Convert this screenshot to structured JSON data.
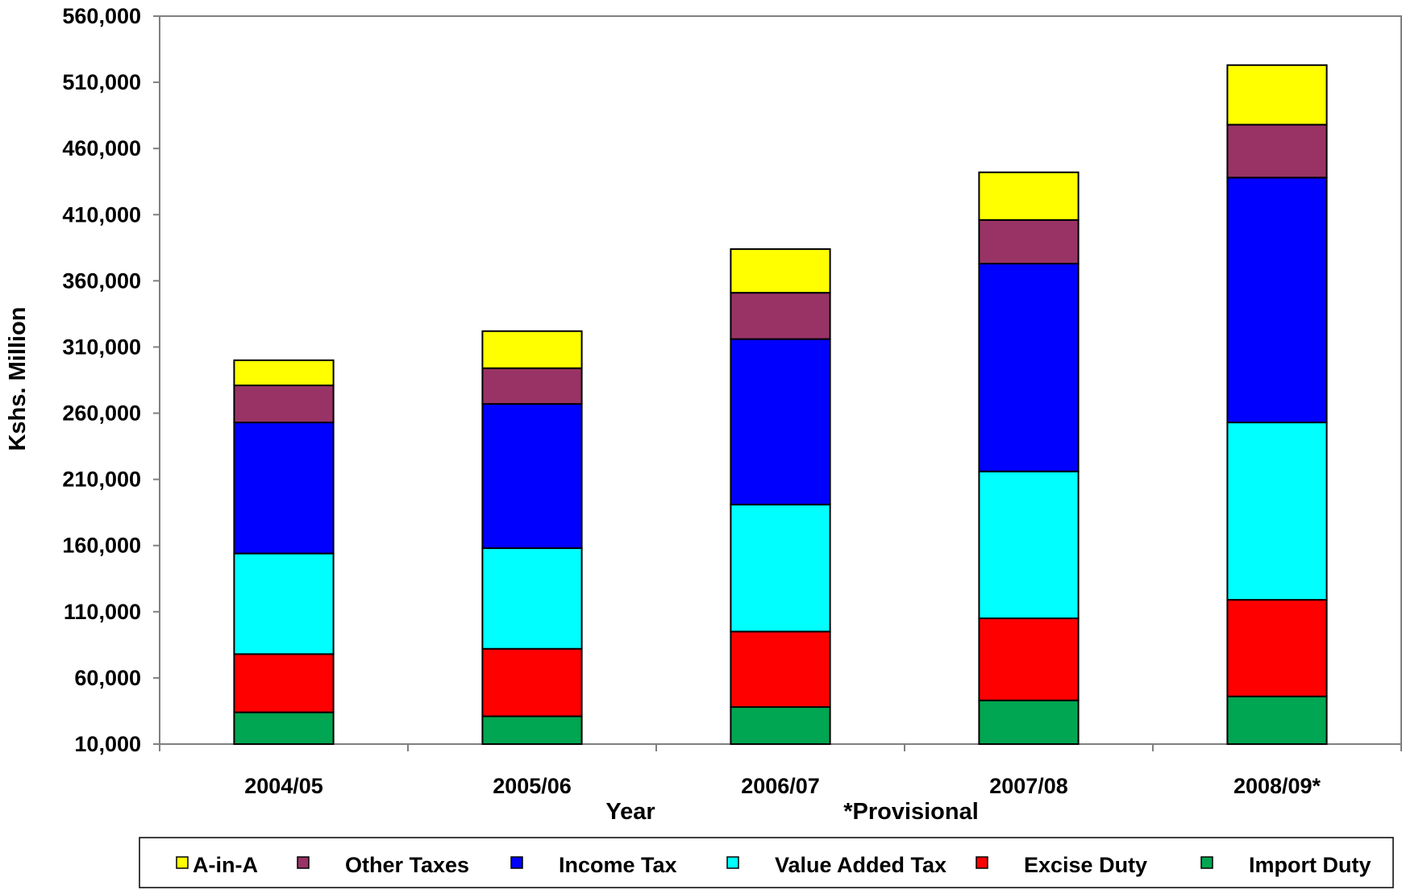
{
  "chart_data": {
    "type": "bar",
    "stacked": true,
    "title": "",
    "xlabel": "Year",
    "ylabel": "Kshs. Million",
    "note": "*Provisional",
    "ylim": [
      10000,
      560000
    ],
    "yticks": [
      10000,
      60000,
      110000,
      160000,
      210000,
      260000,
      310000,
      360000,
      410000,
      460000,
      510000,
      560000
    ],
    "ytick_labels": [
      "10,000",
      "60,000",
      "110,000",
      "160,000",
      "210,000",
      "260,000",
      "310,000",
      "360,000",
      "410,000",
      "460,000",
      "510,000",
      "560,000"
    ],
    "grid": false,
    "legend_position": "bottom",
    "categories": [
      "2004/05",
      "2005/06",
      "2006/07",
      "2007/08",
      "2008/09*"
    ],
    "series": [
      {
        "name": "Import Duty",
        "color": "#00a651",
        "values": [
          24000,
          21000,
          28000,
          33000,
          36000
        ]
      },
      {
        "name": "Excise Duty",
        "color": "#ff0000",
        "values": [
          44000,
          51000,
          57000,
          62000,
          73000
        ]
      },
      {
        "name": "Value Added Tax",
        "color": "#00ffff",
        "values": [
          76000,
          76000,
          96000,
          111000,
          134000
        ]
      },
      {
        "name": "Income Tax",
        "color": "#0000ff",
        "values": [
          99000,
          109000,
          125000,
          157000,
          185000
        ]
      },
      {
        "name": "Other Taxes",
        "color": "#993366",
        "values": [
          28000,
          27000,
          35000,
          33000,
          40000
        ]
      },
      {
        "name": "A-in-A",
        "color": "#ffff00",
        "values": [
          19000,
          28000,
          33000,
          36000,
          45000
        ]
      }
    ],
    "legend_order": [
      "A-in-A",
      "Other Taxes",
      "Income Tax",
      "Value Added Tax",
      "Excise Duty",
      "Import Duty"
    ]
  }
}
